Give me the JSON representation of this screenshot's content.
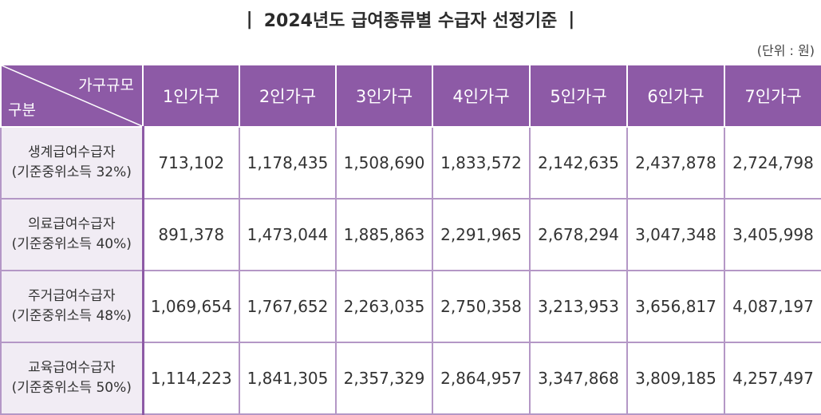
{
  "title": "2024년도 급여종류별 수급자 선정기준",
  "title_bar_left": "|",
  "title_bar_right": "|",
  "unit": "(단위 : 원)",
  "table": {
    "corner_top": "가구규모",
    "corner_bottom": "구분",
    "columns": [
      "1인가구",
      "2인가구",
      "3인가구",
      "4인가구",
      "5인가구",
      "6인가구",
      "7인가구"
    ],
    "rows": [
      {
        "label": "생계급여수급자",
        "sub": "(기준중위소득 32%)",
        "values": [
          "713,102",
          "1,178,435",
          "1,508,690",
          "1,833,572",
          "2,142,635",
          "2,437,878",
          "2,724,798"
        ]
      },
      {
        "label": "의료급여수급자",
        "sub": "(기준중위소득 40%)",
        "values": [
          "891,378",
          "1,473,044",
          "1,885,863",
          "2,291,965",
          "2,678,294",
          "3,047,348",
          "3,405,998"
        ]
      },
      {
        "label": "주거급여수급자",
        "sub": "(기준중위소득 48%)",
        "values": [
          "1,069,654",
          "1,767,652",
          "2,263,035",
          "2,750,358",
          "3,213,953",
          "3,656,817",
          "4,087,197"
        ]
      },
      {
        "label": "교육급여수급자",
        "sub": "(기준중위소득 50%)",
        "values": [
          "1,114,223",
          "1,841,305",
          "2,357,329",
          "2,864,957",
          "3,347,868",
          "3,809,185",
          "4,257,497"
        ]
      }
    ]
  },
  "colors": {
    "header_bg": "#8d5aa6",
    "row_header_bg": "#f1ecf4",
    "border": "#b497c6"
  }
}
